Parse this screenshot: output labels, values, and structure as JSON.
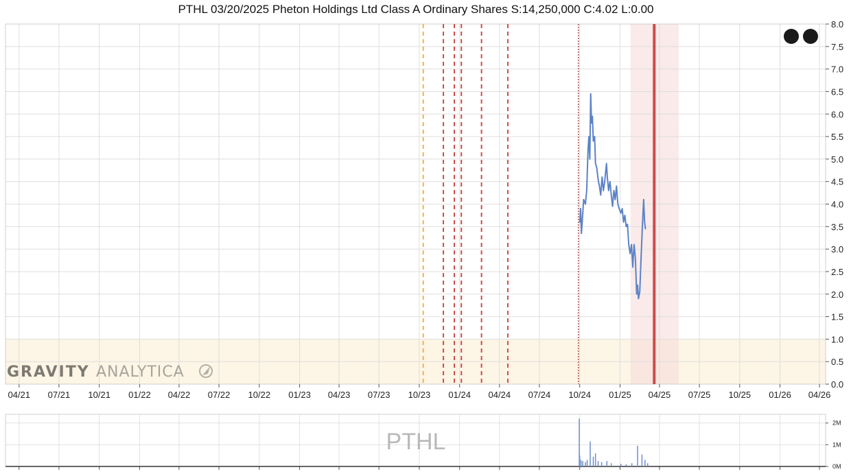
{
  "chart_data": [
    {
      "type": "line",
      "title": "PTHL 03/20/2025 Pheton Holdings Ltd Class A Ordinary Shares S:14,250,000 C:4.02 L:0.00",
      "xlabel": "",
      "ylabel": "",
      "x_ticks": [
        "04/21",
        "07/21",
        "10/21",
        "01/22",
        "04/22",
        "07/22",
        "10/22",
        "01/23",
        "04/23",
        "07/23",
        "10/23",
        "01/24",
        "04/24",
        "07/24",
        "10/24",
        "01/25",
        "04/25",
        "07/25",
        "10/25",
        "01/26",
        "04/26"
      ],
      "y_ticks": [
        "0.0",
        "0.5",
        "1.0",
        "1.5",
        "2.0",
        "2.5",
        "3.0",
        "3.5",
        "4.0",
        "4.5",
        "5.0",
        "5.5",
        "6.0",
        "6.5",
        "7.0",
        "7.5",
        "8.0"
      ],
      "ylim": [
        0,
        8
      ],
      "xlim": [
        "2021-03-01",
        "2026-04-15"
      ],
      "grid": true,
      "series": [
        {
          "color": "#5b82c7",
          "points": [
            [
              "2024-10-01",
              3.6
            ],
            [
              "2024-10-03",
              3.9
            ],
            [
              "2024-10-05",
              3.35
            ],
            [
              "2024-10-08",
              3.8
            ],
            [
              "2024-10-10",
              4.1
            ],
            [
              "2024-10-14",
              4.0
            ],
            [
              "2024-10-17",
              4.3
            ],
            [
              "2024-10-20",
              5.2
            ],
            [
              "2024-10-22",
              5.5
            ],
            [
              "2024-10-24",
              5.0
            ],
            [
              "2024-10-26",
              6.45
            ],
            [
              "2024-10-28",
              5.8
            ],
            [
              "2024-10-30",
              5.95
            ],
            [
              "2024-11-01",
              5.4
            ],
            [
              "2024-11-04",
              5.5
            ],
            [
              "2024-11-06",
              4.9
            ],
            [
              "2024-11-09",
              4.8
            ],
            [
              "2024-11-12",
              4.55
            ],
            [
              "2024-11-15",
              4.4
            ],
            [
              "2024-11-18",
              4.2
            ],
            [
              "2024-11-21",
              4.6
            ],
            [
              "2024-11-24",
              4.3
            ],
            [
              "2024-11-27",
              4.5
            ],
            [
              "2024-12-01",
              4.9
            ],
            [
              "2024-12-03",
              4.6
            ],
            [
              "2024-12-06",
              4.3
            ],
            [
              "2024-12-09",
              4.5
            ],
            [
              "2024-12-12",
              4.2
            ],
            [
              "2024-12-15",
              3.95
            ],
            [
              "2024-12-18",
              4.3
            ],
            [
              "2024-12-21",
              4.1
            ],
            [
              "2024-12-24",
              4.4
            ],
            [
              "2024-12-27",
              4.0
            ],
            [
              "2024-12-30",
              3.9
            ],
            [
              "2025-01-03",
              3.8
            ],
            [
              "2025-01-06",
              3.9
            ],
            [
              "2025-01-09",
              3.6
            ],
            [
              "2025-01-12",
              3.75
            ],
            [
              "2025-01-15",
              3.5
            ],
            [
              "2025-01-18",
              3.55
            ],
            [
              "2025-01-21",
              3.1
            ],
            [
              "2025-01-24",
              2.9
            ],
            [
              "2025-01-27",
              3.1
            ],
            [
              "2025-01-30",
              2.6
            ],
            [
              "2025-02-02",
              3.1
            ],
            [
              "2025-02-05",
              2.8
            ],
            [
              "2025-02-08",
              2.0
            ],
            [
              "2025-02-10",
              2.2
            ],
            [
              "2025-02-12",
              1.9
            ],
            [
              "2025-02-15",
              2.05
            ],
            [
              "2025-02-18",
              2.8
            ],
            [
              "2025-02-21",
              3.5
            ],
            [
              "2025-02-24",
              4.1
            ],
            [
              "2025-02-26",
              3.6
            ],
            [
              "2025-02-28",
              3.45
            ]
          ]
        }
      ],
      "vertical_markers": [
        {
          "date": "2023-10-10",
          "color": "#f0b24a",
          "style": "dashed"
        },
        {
          "date": "2023-11-25",
          "color": "#cf4b4b",
          "style": "dashed"
        },
        {
          "date": "2023-12-20",
          "color": "#cf4b4b",
          "style": "dashed"
        },
        {
          "date": "2024-01-05",
          "color": "#cf4b4b",
          "style": "dashed"
        },
        {
          "date": "2024-02-20",
          "color": "#cf4b4b",
          "style": "dashed"
        },
        {
          "date": "2024-04-20",
          "color": "#cf4b4b",
          "style": "dashed"
        },
        {
          "date": "2024-09-28",
          "color": "#b44d4d",
          "style": "dotted"
        },
        {
          "date": "2025-03-20",
          "color": "#cf4b4b",
          "style": "solid"
        }
      ],
      "shaded_range": {
        "start": "2025-01-25",
        "end": "2025-05-15",
        "color": "#f6d8d8"
      },
      "band": {
        "y0": 0,
        "y1": 1.0,
        "color": "#fdf5e5"
      },
      "dots": 2
    },
    {
      "type": "bar",
      "title": "PTHL",
      "y_ticks": [
        "0M",
        "1M",
        "2M"
      ],
      "ylim": [
        0,
        2400000
      ],
      "color": "#6b8fcc",
      "bars": [
        [
          "2024-09-30",
          2200000
        ],
        [
          "2024-10-01",
          500000
        ],
        [
          "2024-10-04",
          300000
        ],
        [
          "2024-10-08",
          250000
        ],
        [
          "2024-10-14",
          200000
        ],
        [
          "2024-10-18",
          300000
        ],
        [
          "2024-10-25",
          1150000
        ],
        [
          "2024-11-01",
          450000
        ],
        [
          "2024-11-06",
          600000
        ],
        [
          "2024-11-12",
          250000
        ],
        [
          "2024-11-20",
          200000
        ],
        [
          "2024-12-02",
          250000
        ],
        [
          "2024-12-12",
          150000
        ],
        [
          "2025-01-03",
          120000
        ],
        [
          "2025-01-15",
          100000
        ],
        [
          "2025-01-28",
          150000
        ],
        [
          "2025-02-10",
          950000
        ],
        [
          "2025-02-20",
          550000
        ],
        [
          "2025-02-27",
          300000
        ],
        [
          "2025-03-05",
          150000
        ]
      ]
    }
  ],
  "watermark": {
    "bold": "GRAVITY",
    "light": "ANALYTICA"
  }
}
